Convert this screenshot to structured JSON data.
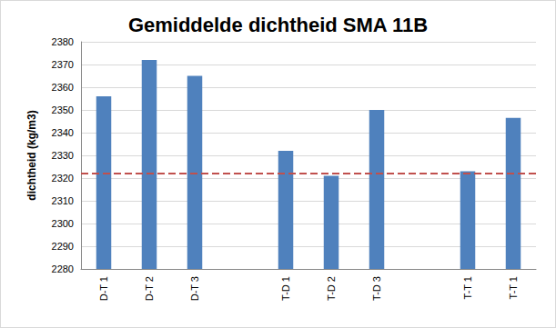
{
  "chart_data": {
    "type": "bar",
    "title": "Gemiddelde dichtheid SMA 11B",
    "y_label": "dichtheid (kg/m3)",
    "categories": [
      "D-T 1",
      "D-T 2",
      "D-T 3",
      null,
      "T-D 1",
      "T-D 2",
      "T-D 3",
      null,
      "T-T 1",
      "T-T 1"
    ],
    "values": [
      2356,
      2372,
      2365,
      null,
      2332,
      2321,
      2350,
      null,
      2323,
      2346.5
    ],
    "color": "#4f81bd",
    "ylim": [
      2280,
      2380
    ],
    "yticks": [
      2280,
      2290,
      2300,
      2310,
      2320,
      2330,
      2340,
      2350,
      2360,
      2370,
      2380
    ],
    "grid": true,
    "tick_labels": true,
    "reference_line": {
      "value": 2322,
      "color": "#c0504d",
      "line_style": "dashed"
    }
  }
}
